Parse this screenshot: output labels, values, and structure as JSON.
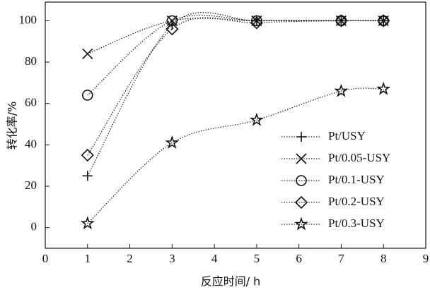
{
  "chart_data": {
    "type": "line",
    "xlabel": "反应时间/ h",
    "ylabel": "转化率/%",
    "x": [
      1,
      3,
      5,
      7,
      8
    ],
    "series": [
      {
        "name": "Pt/USY",
        "color": "#111111",
        "marker": "plus",
        "values": [
          25,
          98,
          100,
          100,
          100
        ]
      },
      {
        "name": "Pt/0.05-USY",
        "color": "#111111",
        "marker": "x",
        "values": [
          84,
          100,
          100,
          100,
          100
        ]
      },
      {
        "name": "Pt/0.1-USY",
        "color": "#111111",
        "marker": "circle",
        "values": [
          64,
          100,
          100,
          100,
          100
        ]
      },
      {
        "name": "Pt/0.2-USY",
        "color": "#111111",
        "marker": "diamond",
        "values": [
          35,
          96,
          99,
          100,
          100
        ]
      },
      {
        "name": "Pt/0.3-USY",
        "color": "#111111",
        "marker": "star",
        "values": [
          2,
          41,
          52,
          66,
          67
        ]
      }
    ],
    "xlim": [
      0,
      9
    ],
    "xticks": [
      0,
      1,
      2,
      3,
      4,
      5,
      6,
      7,
      8,
      9
    ],
    "ylim": [
      -10,
      109
    ],
    "yticks": [
      0,
      20,
      40,
      60,
      80,
      100
    ],
    "legend": "lower right"
  }
}
